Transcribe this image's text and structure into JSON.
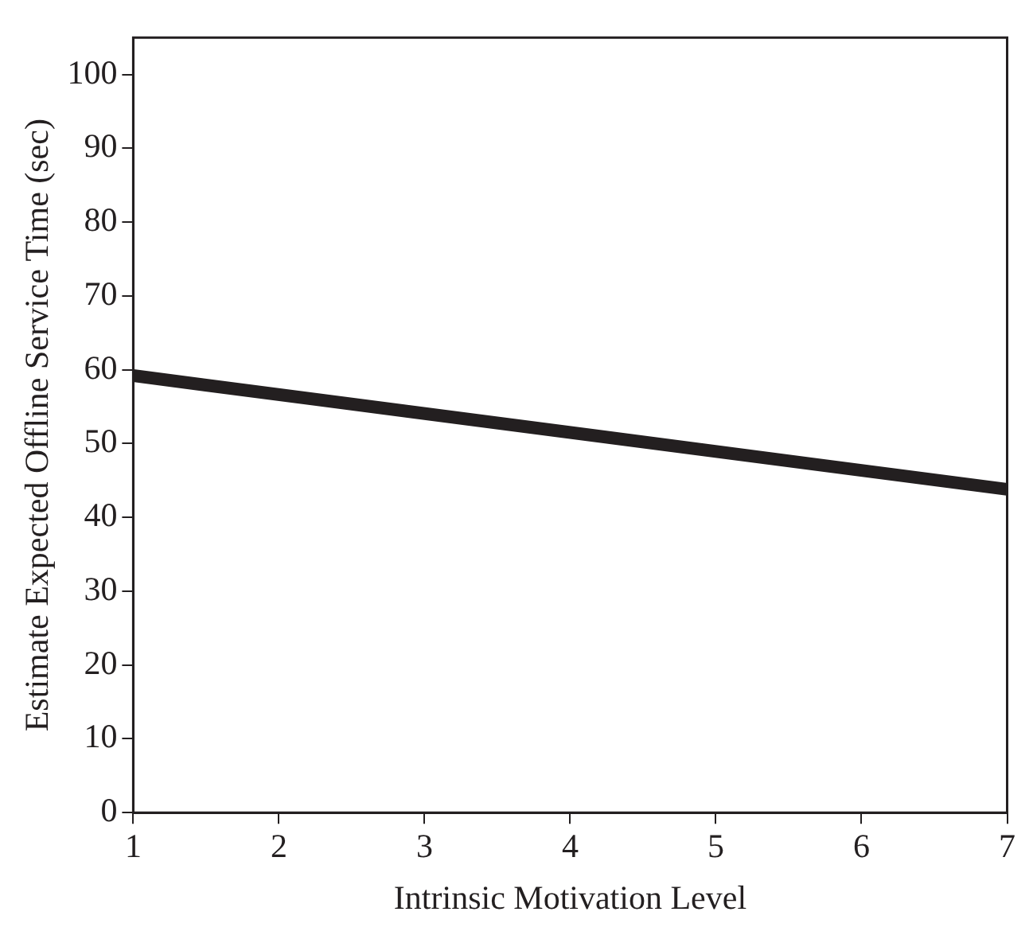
{
  "chart_data": {
    "type": "line",
    "xlabel": "Intrinsic Motivation Level",
    "ylabel": "Estimate Expected Offline Service Time (sec)",
    "x": [
      1,
      7
    ],
    "series": [
      {
        "color": "#231f20",
        "values": [
          59.2,
          43.8
        ]
      }
    ],
    "xlim": [
      1,
      7
    ],
    "xticks": [
      1,
      2,
      3,
      4,
      5,
      6,
      7
    ],
    "ylim": [
      0,
      105
    ],
    "yticks": [
      0,
      10,
      20,
      30,
      40,
      50,
      60,
      70,
      80,
      90,
      100
    ],
    "grid": false,
    "legend": false,
    "marker": "none",
    "line_style": "solid"
  }
}
